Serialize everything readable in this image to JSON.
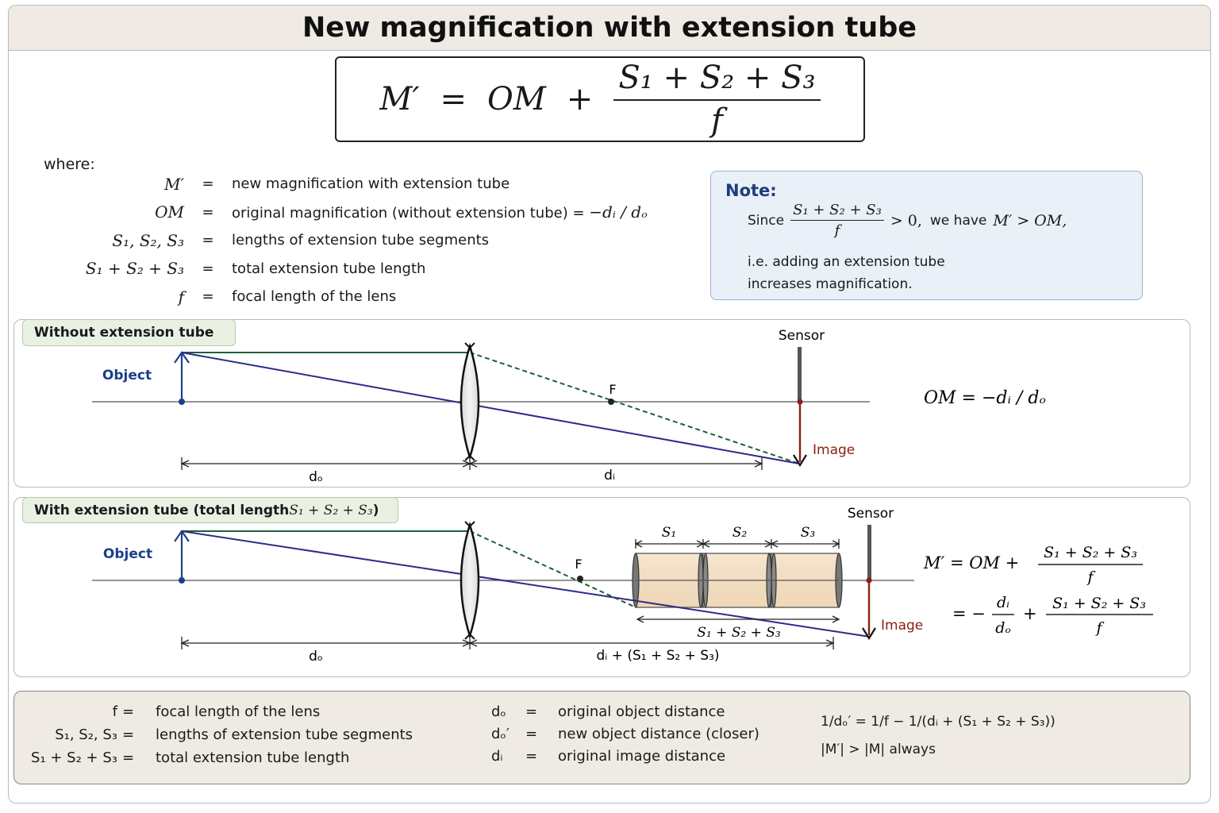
{
  "title": "New magnification with extension tube",
  "main_equation": {
    "lhs": "M′",
    "eq": "=",
    "term": "OM",
    "plus": "+",
    "numerator": "S₁ + S₂ + S₃",
    "denominator": "f"
  },
  "where_label": "where:",
  "definitions": [
    {
      "symbol": "M′",
      "eq": "=",
      "text": "new magnification with extension tube"
    },
    {
      "symbol": "OM",
      "eq": "=",
      "text": "original magnification (without extension tube) = ",
      "extra": "−dᵢ / dₒ"
    },
    {
      "symbol": "S₁, S₂, S₃",
      "eq": "=",
      "text": "lengths of extension tube segments"
    },
    {
      "symbol": "S₁ + S₂ + S₃",
      "eq": "=",
      "text": "total extension tube length"
    },
    {
      "symbol": "f",
      "eq": "=",
      "text": "focal length of the lens"
    }
  ],
  "note": {
    "title": "Note:",
    "since": "Since",
    "frac_num": "S₁ + S₂ + S₃",
    "frac_den": "f",
    "gt_zero": "> 0,",
    "we_have": "we have",
    "inequality": "M′ > OM,",
    "line2": "i.e. adding an extension tube",
    "line3": "increases magnification."
  },
  "panel1": {
    "tag": "Without extension tube",
    "object": "Object",
    "sensor": "Sensor",
    "focal_point": "F",
    "image": "Image",
    "d_o": "dₒ",
    "d_i": "dᵢ",
    "formula": "OM = −dᵢ / dₒ"
  },
  "panel2": {
    "tag_prefix": "With extension tube (total length ",
    "tag_math": "S₁ + S₂ + S₃",
    "tag_suffix": ")",
    "object": "Object",
    "sensor": "Sensor",
    "focal_point": "F",
    "image": "Image",
    "s1": "S₁",
    "s2": "S₂",
    "s3": "S₃",
    "total": "S₁ + S₂ + S₃",
    "d_o": "dₒ",
    "d_i_total": "dᵢ + (S₁ + S₂ + S₃)",
    "formula_line1_lhs": "M′ = OM +",
    "formula_line1_num": "S₁ + S₂ + S₃",
    "formula_line1_den": "f",
    "formula_line2_eq": "= −",
    "formula_line2_num1": "dᵢ",
    "formula_line2_den1": "dₒ",
    "formula_line2_plus": "+",
    "formula_line2_num2": "S₁ + S₂ + S₃",
    "formula_line2_den2": "f"
  },
  "legend": {
    "col1": [
      {
        "sym": "f",
        "eq": "=",
        "text": "focal length of the lens"
      },
      {
        "sym": "S₁, S₂, S₃",
        "eq": "=",
        "text": "lengths of extension tube segments"
      },
      {
        "sym": "S₁ + S₂ + S₃",
        "eq": "=",
        "text": "total extension tube length"
      }
    ],
    "col2": [
      {
        "sym": "dₒ",
        "eq": "=",
        "text": "original object distance"
      },
      {
        "sym": "dₒ′",
        "eq": "=",
        "text": "new object distance (closer)"
      },
      {
        "sym": "dᵢ",
        "eq": "=",
        "text": "original image distance"
      }
    ],
    "col3": [
      "1/dₒ′ = 1/f − 1/(dᵢ + (S₁ + S₂ + S₃))",
      "|M′| > |M| always"
    ]
  },
  "colors": {
    "ray_blue": "#2e2a8c",
    "ray_green": "#1f5f3a",
    "object": "#1c3f8a",
    "image": "#8a1f0f",
    "tube": "#f3e2c8"
  }
}
